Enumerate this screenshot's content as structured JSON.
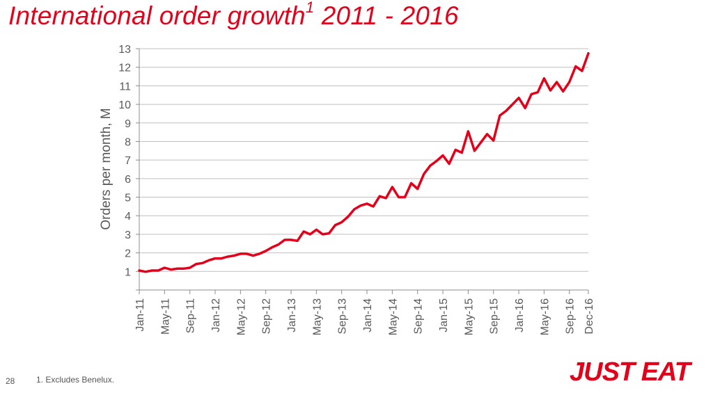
{
  "title": {
    "text": "International order growth",
    "footnote_marker": "1",
    "years": "2011 - 2016"
  },
  "page_number": "28",
  "footnote": "1.  Excludes Benelux.",
  "logo": "JUST EAT",
  "colors": {
    "accent": "#e2001a",
    "grid": "#bfbfbf",
    "axis_text": "#595959"
  },
  "chart_data": {
    "type": "line",
    "ylabel": "Orders per month, M",
    "xlabel": "",
    "ylim": [
      0,
      13
    ],
    "yticks": [
      1,
      2,
      3,
      4,
      5,
      6,
      7,
      8,
      9,
      10,
      11,
      12,
      13
    ],
    "grid": true,
    "x_tick_labels": [
      "Jan-11",
      "May-11",
      "Sep-11",
      "Jan-12",
      "May-12",
      "Sep-12",
      "Jan-13",
      "May-13",
      "Sep-13",
      "Jan-14",
      "May-14",
      "Sep-14",
      "Jan-15",
      "May-15",
      "Sep-15",
      "Jan-16",
      "May-16",
      "Sep-16",
      "Dec-16"
    ],
    "x_tick_index": [
      0,
      4,
      8,
      12,
      16,
      20,
      24,
      28,
      32,
      36,
      40,
      44,
      48,
      52,
      56,
      60,
      64,
      68,
      71
    ],
    "series": [
      {
        "values": [
          1.05,
          0.98,
          1.05,
          1.05,
          1.2,
          1.1,
          1.15,
          1.15,
          1.2,
          1.4,
          1.45,
          1.6,
          1.7,
          1.7,
          1.8,
          1.85,
          1.95,
          1.95,
          1.85,
          1.95,
          2.1,
          2.3,
          2.45,
          2.7,
          2.7,
          2.65,
          3.15,
          3.0,
          3.25,
          3.0,
          3.05,
          3.5,
          3.65,
          3.95,
          4.35,
          4.55,
          4.65,
          4.5,
          5.05,
          4.95,
          5.55,
          5.0,
          5.0,
          5.75,
          5.45,
          6.25,
          6.7,
          6.95,
          7.25,
          6.8,
          7.55,
          7.4,
          8.55,
          7.5,
          7.95,
          8.4,
          8.05,
          9.4,
          9.65,
          10.0,
          10.35,
          9.8,
          10.55,
          10.65,
          11.4,
          10.75,
          11.2,
          10.7,
          11.2,
          12.05,
          11.8,
          12.75
        ]
      }
    ]
  }
}
